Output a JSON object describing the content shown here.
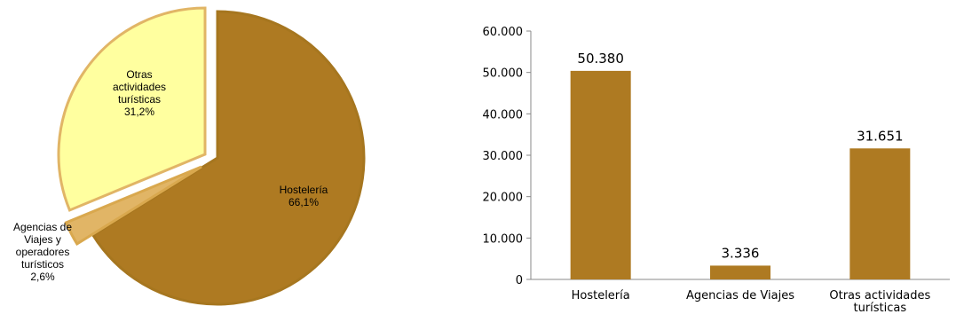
{
  "chart_data": [
    {
      "type": "pie",
      "slices": [
        {
          "key": "hosteleria",
          "label_lines": [
            "Hostelería",
            "66,1%"
          ],
          "value": 66.1,
          "color": "#AE7A22",
          "stroke": "#A6761F"
        },
        {
          "key": "agencias",
          "label_lines": [
            "Agencias de",
            "Viajes y",
            "operadores",
            "turísticos",
            "2,6%"
          ],
          "value": 2.6,
          "color": "#E1B566",
          "stroke": "#D9A84E"
        },
        {
          "key": "otras",
          "label_lines": [
            "Otras",
            "actividades",
            "turísticas",
            "31,2%"
          ],
          "value": 31.2,
          "color": "#FFFF9F",
          "stroke": "#E1B566"
        }
      ]
    },
    {
      "type": "bar",
      "categories": [
        [
          "Hostelería"
        ],
        [
          "Agencias de Viajes"
        ],
        [
          "Otras actividades",
          "turísticas"
        ]
      ],
      "values": [
        50380,
        3336,
        31651
      ],
      "value_labels": [
        "50.380",
        "3.336",
        "31.651"
      ],
      "ylim": [
        0,
        60000
      ],
      "yticks": [
        0,
        10000,
        20000,
        30000,
        40000,
        50000,
        60000
      ],
      "ytick_labels": [
        "0",
        "10.000",
        "20.000",
        "30.000",
        "40.000",
        "50.000",
        "60.000"
      ],
      "color": "#AE7A22",
      "grid": false
    }
  ]
}
